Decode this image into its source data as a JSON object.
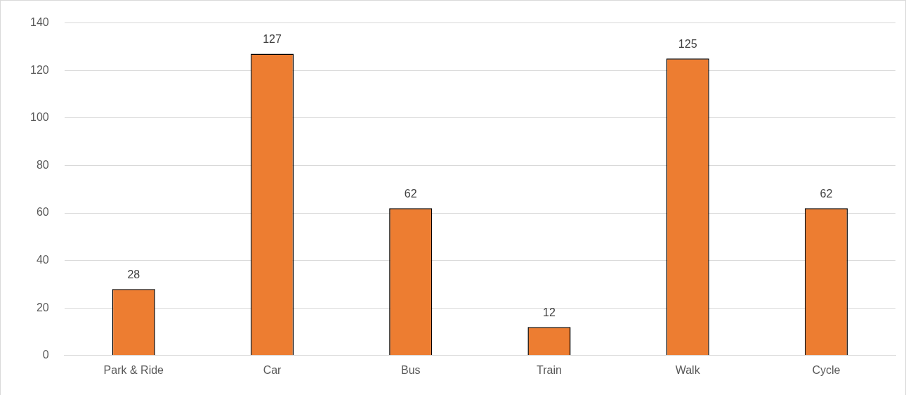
{
  "chart_data": {
    "type": "bar",
    "categories": [
      "Park & Ride",
      "Car",
      "Bus",
      "Train",
      "Walk",
      "Cycle"
    ],
    "values": [
      28,
      127,
      62,
      12,
      125,
      62
    ],
    "color": "#ed7d31",
    "ylim": [
      0,
      140
    ],
    "yticks": [
      0,
      20,
      40,
      60,
      80,
      100,
      120,
      140
    ],
    "grid": "y",
    "data_labels": true
  }
}
